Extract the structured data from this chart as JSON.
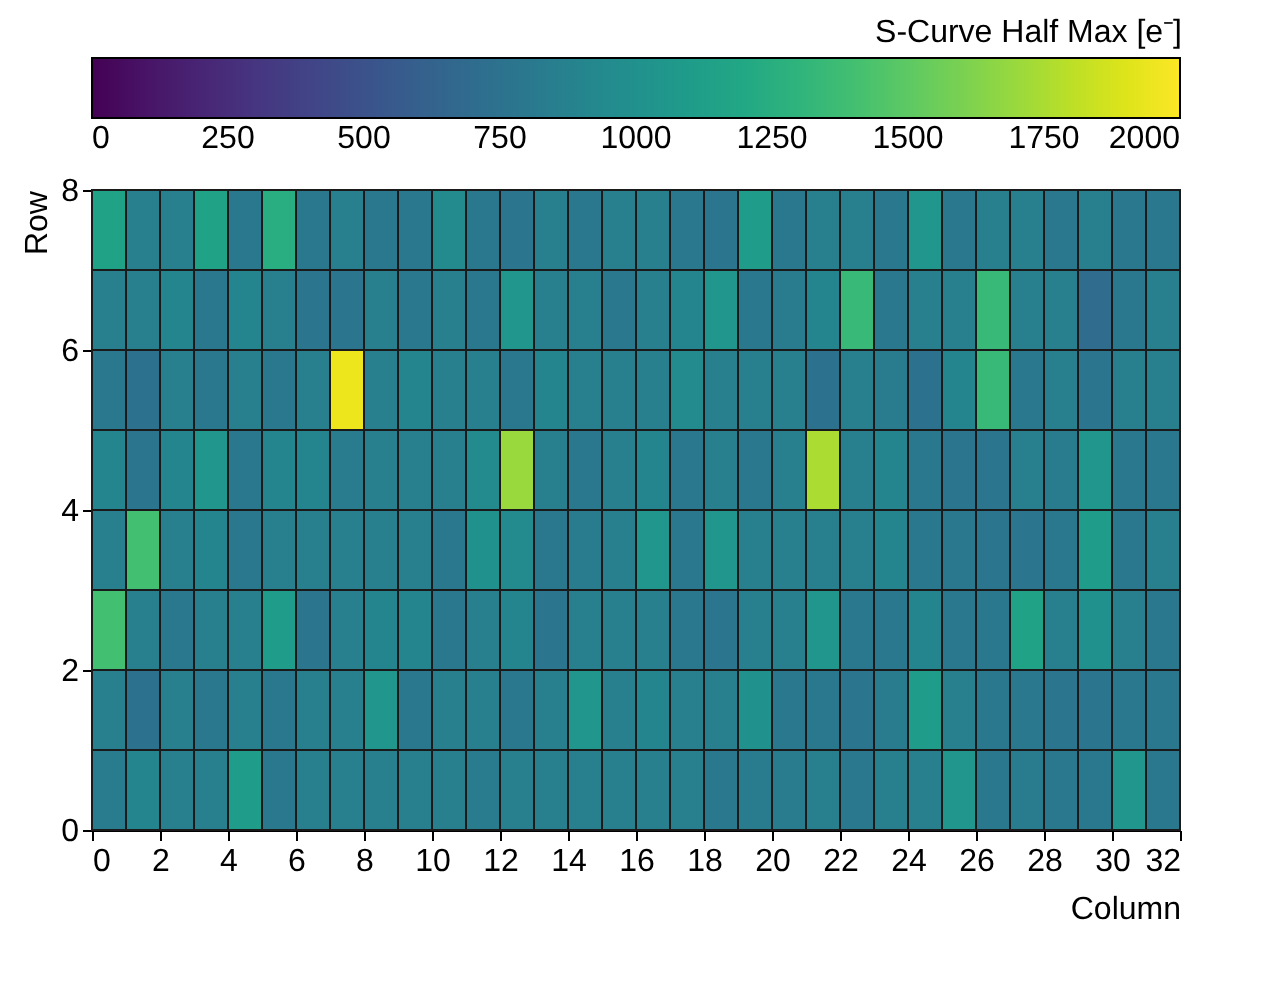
{
  "chart_data": {
    "type": "heatmap",
    "xlabel": "Column",
    "ylabel": "Row",
    "clabel": "S-Curve Half Max [e⁻]",
    "xlim": [
      0,
      32
    ],
    "xticks": [
      0,
      2,
      4,
      6,
      8,
      10,
      12,
      14,
      16,
      18,
      20,
      22,
      24,
      26,
      28,
      30,
      32
    ],
    "ylim": [
      0,
      8
    ],
    "yticks": [
      0,
      2,
      4,
      6,
      8
    ],
    "clim": [
      0,
      2000
    ],
    "cticks": [
      0,
      250,
      500,
      750,
      1000,
      1250,
      1500,
      1750,
      2000
    ],
    "grid": false,
    "cells": [
      [
        1150,
        850,
        850,
        1150,
        800,
        1250,
        800,
        850,
        800,
        800,
        950,
        800,
        780,
        850,
        800,
        850,
        850,
        800,
        780,
        1100,
        800,
        850,
        850,
        800,
        1050,
        800,
        850,
        850,
        800,
        850,
        800,
        800
      ],
      [
        850,
        850,
        900,
        800,
        900,
        850,
        780,
        780,
        850,
        800,
        850,
        800,
        1050,
        850,
        850,
        800,
        850,
        900,
        1050,
        800,
        820,
        900,
        1350,
        800,
        850,
        850,
        1350,
        850,
        850,
        700,
        800,
        850
      ],
      [
        800,
        750,
        850,
        800,
        850,
        800,
        850,
        1950,
        850,
        900,
        850,
        850,
        800,
        900,
        850,
        850,
        850,
        950,
        850,
        850,
        850,
        750,
        850,
        820,
        750,
        900,
        1350,
        800,
        850,
        780,
        850,
        850
      ],
      [
        900,
        780,
        900,
        1050,
        800,
        900,
        900,
        820,
        850,
        850,
        850,
        950,
        1700,
        850,
        800,
        850,
        900,
        800,
        850,
        800,
        850,
        1750,
        850,
        900,
        800,
        780,
        780,
        850,
        820,
        1050,
        800,
        800
      ],
      [
        850,
        1400,
        850,
        900,
        800,
        850,
        850,
        850,
        850,
        850,
        800,
        1000,
        950,
        800,
        820,
        850,
        1050,
        800,
        1050,
        850,
        850,
        850,
        850,
        900,
        800,
        800,
        780,
        780,
        800,
        1100,
        800,
        850
      ],
      [
        1400,
        850,
        800,
        850,
        850,
        1100,
        780,
        850,
        900,
        900,
        800,
        850,
        900,
        780,
        850,
        850,
        850,
        800,
        780,
        850,
        850,
        1050,
        800,
        800,
        900,
        800,
        800,
        1150,
        850,
        1000,
        850,
        800
      ],
      [
        850,
        750,
        850,
        800,
        850,
        800,
        850,
        850,
        1050,
        800,
        850,
        850,
        800,
        850,
        1050,
        850,
        900,
        850,
        850,
        1000,
        800,
        800,
        780,
        820,
        1100,
        850,
        800,
        800,
        780,
        780,
        800,
        800
      ],
      [
        820,
        900,
        850,
        850,
        1100,
        800,
        850,
        850,
        850,
        850,
        850,
        820,
        850,
        850,
        850,
        850,
        850,
        850,
        800,
        820,
        820,
        850,
        800,
        850,
        850,
        1050,
        800,
        820,
        800,
        800,
        1050,
        800
      ]
    ]
  }
}
